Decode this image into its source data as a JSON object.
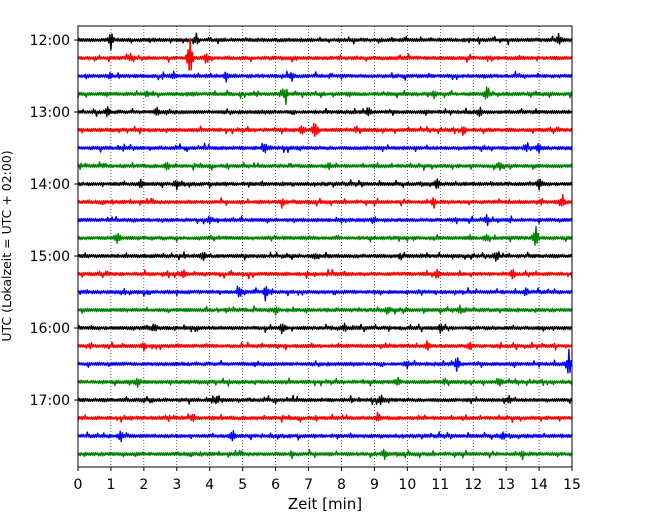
{
  "chart_data": {
    "type": "line",
    "xlabel": "Zeit  [min]",
    "ylabel": "UTC (Lokalzeit = UTC + 02:00)",
    "xlim": [
      0,
      15
    ],
    "x_ticks": [
      "0",
      "1",
      "2",
      "3",
      "4",
      "5",
      "6",
      "7",
      "8",
      "9",
      "10",
      "11",
      "12",
      "13",
      "14",
      "15"
    ],
    "y_ticks": [
      "12:00",
      "13:00",
      "14:00",
      "15:00",
      "16:00",
      "17:00"
    ],
    "grid": "vertical dotted at each minute",
    "trace_colors": [
      "#000000",
      "#ff0000",
      "#0000ff",
      "#008000"
    ],
    "traces": [
      {
        "start": "12:00",
        "events": [
          [
            1.0,
            1.0
          ],
          [
            3.6,
            0.5
          ],
          [
            14.6,
            0.6
          ]
        ]
      },
      {
        "start": "12:15",
        "events": [
          [
            3.4,
            2.5
          ],
          [
            3.9,
            0.6
          ],
          [
            1.6,
            0.4
          ]
        ]
      },
      {
        "start": "12:30",
        "events": [
          [
            4.5,
            0.5
          ],
          [
            2.9,
            0.4
          ],
          [
            6.5,
            0.4
          ]
        ]
      },
      {
        "start": "12:45",
        "events": [
          [
            6.3,
            0.8
          ],
          [
            12.4,
            0.8
          ],
          [
            2.1,
            0.4
          ],
          [
            10.8,
            0.5
          ]
        ]
      },
      {
        "start": "13:00",
        "events": [
          [
            0.9,
            0.6
          ],
          [
            8.8,
            0.5
          ],
          [
            12.2,
            0.5
          ],
          [
            2.4,
            0.4
          ]
        ]
      },
      {
        "start": "13:15",
        "events": [
          [
            7.2,
            1.3
          ],
          [
            11.7,
            0.5
          ],
          [
            6.8,
            0.5
          ]
        ]
      },
      {
        "start": "13:30",
        "events": [
          [
            5.7,
            0.5
          ],
          [
            14.0,
            0.5
          ],
          [
            13.6,
            0.4
          ]
        ]
      },
      {
        "start": "13:45",
        "events": [
          [
            2.7,
            0.4
          ],
          [
            12.8,
            0.4
          ],
          [
            7.6,
            0.3
          ]
        ]
      },
      {
        "start": "14:00",
        "events": [
          [
            3.0,
            0.5
          ],
          [
            10.9,
            0.5
          ],
          [
            14.0,
            0.6
          ],
          [
            1.9,
            0.4
          ]
        ]
      },
      {
        "start": "14:15",
        "events": [
          [
            10.8,
            0.6
          ],
          [
            14.7,
            0.6
          ],
          [
            6.2,
            0.4
          ]
        ]
      },
      {
        "start": "14:30",
        "events": [
          [
            4.0,
            0.4
          ],
          [
            12.4,
            0.4
          ],
          [
            9.0,
            0.3
          ]
        ]
      },
      {
        "start": "14:45",
        "events": [
          [
            1.2,
            0.7
          ],
          [
            13.9,
            1.5
          ],
          [
            12.4,
            0.4
          ]
        ]
      },
      {
        "start": "15:00",
        "events": [
          [
            3.8,
            0.6
          ],
          [
            12.7,
            0.5
          ],
          [
            7.2,
            0.4
          ]
        ]
      },
      {
        "start": "15:15",
        "events": [
          [
            10.9,
            0.6
          ],
          [
            13.2,
            0.6
          ],
          [
            3.2,
            0.4
          ]
        ]
      },
      {
        "start": "15:30",
        "events": [
          [
            5.7,
            1.0
          ],
          [
            4.9,
            0.6
          ],
          [
            13.6,
            0.5
          ]
        ]
      },
      {
        "start": "15:45",
        "events": [
          [
            6.0,
            0.4
          ],
          [
            9.4,
            0.4
          ],
          [
            11.6,
            0.4
          ]
        ]
      },
      {
        "start": "16:00",
        "events": [
          [
            6.2,
            0.6
          ],
          [
            11.0,
            0.5
          ],
          [
            2.3,
            0.4
          ],
          [
            8.1,
            0.4
          ]
        ]
      },
      {
        "start": "16:15",
        "events": [
          [
            10.6,
            0.6
          ],
          [
            11.9,
            0.5
          ],
          [
            2.0,
            0.4
          ]
        ]
      },
      {
        "start": "16:30",
        "events": [
          [
            11.5,
            0.9
          ],
          [
            14.9,
            1.6
          ],
          [
            10.0,
            0.4
          ]
        ]
      },
      {
        "start": "16:45",
        "events": [
          [
            1.8,
            0.6
          ],
          [
            9.7,
            0.5
          ],
          [
            12.8,
            0.4
          ]
        ]
      },
      {
        "start": "17:00",
        "events": [
          [
            4.2,
            0.4
          ],
          [
            9.2,
            0.5
          ],
          [
            13.1,
            0.4
          ]
        ]
      },
      {
        "start": "17:15",
        "events": [
          [
            9.1,
            0.4
          ],
          [
            3.5,
            0.3
          ]
        ]
      },
      {
        "start": "17:30",
        "events": [
          [
            1.3,
            0.6
          ],
          [
            4.7,
            0.6
          ],
          [
            12.9,
            0.4
          ]
        ]
      },
      {
        "start": "17:45",
        "events": [
          [
            9.3,
            0.5
          ],
          [
            6.5,
            0.4
          ],
          [
            13.5,
            0.4
          ]
        ]
      }
    ]
  }
}
